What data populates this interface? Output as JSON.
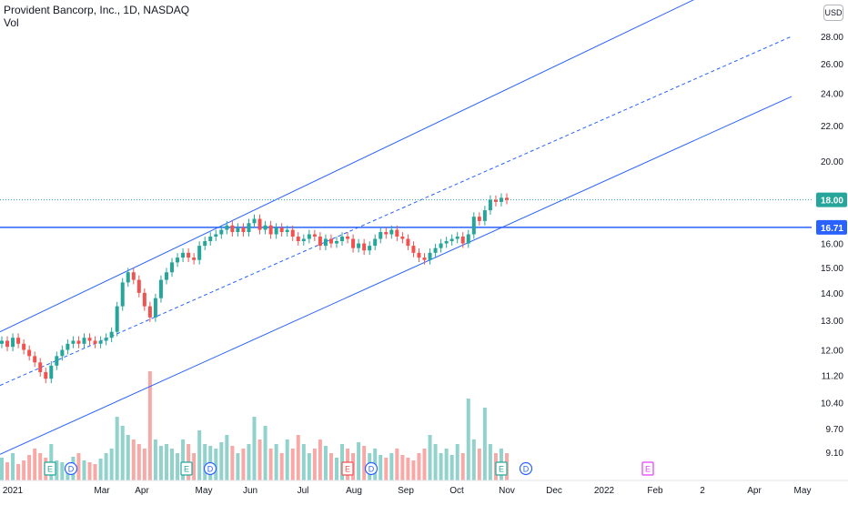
{
  "legend": {
    "symbol_line": "Provident Bancorp, Inc., 1D, NASDAQ",
    "indicator": "Vol"
  },
  "currency": "USD",
  "colors": {
    "up": "#26a69a",
    "down": "#ef5350",
    "channel": "#2962ff",
    "price_line": "#26a69a",
    "h_line": "#2962ff",
    "earnings": "#26a69a",
    "earnings_down": "#ef5350",
    "earnings_future": "#e040fb",
    "dividend": "#2962ff"
  },
  "chart_data": {
    "type": "candlestick",
    "y_axis": {
      "ticks": [
        9.1,
        9.7,
        10.4,
        11.2,
        12.0,
        13.0,
        14.0,
        15.0,
        16.0,
        18.0,
        20.0,
        22.0,
        24.0,
        26.0,
        28.0
      ],
      "scale": "log"
    },
    "x_axis": {
      "ticks": [
        "2021",
        "Mar",
        "Apr",
        "May",
        "Jun",
        "Jul",
        "Aug",
        "Sep",
        "Oct",
        "Nov",
        "Dec",
        "2022",
        "Feb",
        "2",
        "Apr",
        "May"
      ]
    },
    "price_labels": [
      {
        "value": "18.00",
        "kind": "last"
      },
      {
        "value": "16.71",
        "kind": "horizontal-line"
      }
    ],
    "horizontal_line": 16.71,
    "last_price": 18.0,
    "close_series": [
      12.3,
      12.1,
      12.4,
      12.2,
      12.0,
      11.8,
      11.6,
      11.3,
      11.1,
      11.5,
      11.8,
      12.0,
      12.2,
      12.3,
      12.2,
      12.4,
      12.3,
      12.2,
      12.3,
      12.4,
      12.6,
      13.5,
      14.4,
      14.8,
      14.5,
      14.0,
      13.5,
      13.1,
      13.8,
      14.5,
      14.8,
      15.2,
      15.4,
      15.6,
      15.4,
      15.3,
      15.9,
      16.1,
      16.3,
      16.4,
      16.6,
      16.8,
      16.5,
      16.7,
      16.5,
      16.9,
      17.1,
      16.6,
      16.8,
      16.4,
      16.7,
      16.5,
      16.6,
      16.3,
      16.1,
      16.2,
      16.4,
      16.3,
      15.9,
      16.2,
      16.0,
      16.1,
      16.3,
      16.2,
      15.8,
      16.0,
      15.7,
      15.9,
      16.2,
      16.5,
      16.4,
      16.6,
      16.3,
      16.2,
      15.9,
      15.6,
      15.4,
      15.3,
      15.6,
      15.8,
      16.0,
      16.1,
      16.2,
      16.3,
      16.0,
      16.4,
      17.2,
      17.0,
      17.5,
      18.0,
      17.9,
      18.1,
      18.0
    ],
    "volume_series": [
      0.25,
      0.2,
      0.3,
      0.18,
      0.22,
      0.28,
      0.35,
      0.3,
      0.25,
      0.4,
      0.22,
      0.2,
      0.18,
      0.26,
      0.3,
      0.22,
      0.2,
      0.18,
      0.24,
      0.3,
      0.35,
      0.7,
      0.6,
      0.5,
      0.45,
      0.4,
      0.35,
      1.2,
      0.45,
      0.38,
      0.4,
      0.35,
      0.3,
      0.45,
      0.4,
      0.3,
      0.55,
      0.4,
      0.38,
      0.35,
      0.42,
      0.5,
      0.38,
      0.3,
      0.35,
      0.4,
      0.7,
      0.45,
      0.6,
      0.35,
      0.4,
      0.3,
      0.45,
      0.35,
      0.5,
      0.4,
      0.3,
      0.35,
      0.45,
      0.38,
      0.3,
      0.25,
      0.4,
      0.35,
      0.3,
      0.42,
      0.38,
      0.3,
      0.35,
      0.28,
      0.25,
      0.3,
      0.35,
      0.28,
      0.25,
      0.22,
      0.3,
      0.35,
      0.5,
      0.4,
      0.3,
      0.35,
      0.28,
      0.4,
      0.3,
      0.9,
      0.45,
      0.35,
      0.8,
      0.4,
      0.3,
      0.35,
      0.3
    ],
    "event_markers": [
      {
        "label": "E",
        "kind": "earnings"
      },
      {
        "label": "D",
        "kind": "dividend"
      },
      {
        "label": "E",
        "kind": "earnings"
      },
      {
        "label": "D",
        "kind": "dividend"
      },
      {
        "label": "E",
        "kind": "earnings_down"
      },
      {
        "label": "D",
        "kind": "dividend"
      },
      {
        "label": "E",
        "kind": "earnings"
      },
      {
        "label": "D",
        "kind": "dividend"
      },
      {
        "label": "E",
        "kind": "earnings_future"
      }
    ],
    "channel": {
      "upper_start": 12.6,
      "upper_end": 32.5,
      "mid_start": 10.9,
      "mid_end": 28.0,
      "lower_start": 9.05,
      "lower_end": 23.8
    }
  }
}
